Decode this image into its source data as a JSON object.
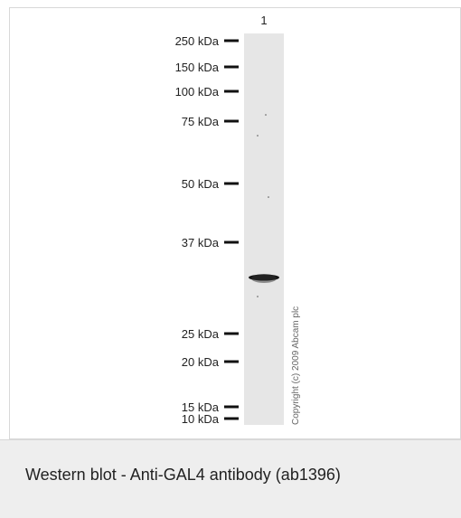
{
  "figure": {
    "lane_label": "1",
    "markers": [
      "250 kDa",
      "150 kDa",
      "100 kDa",
      "75 kDa",
      "50 kDa",
      "37 kDa",
      "25 kDa",
      "20 kDa",
      "15 kDa",
      "10 kDa"
    ],
    "copyright": "Copyright (c) 2009 Abcam plc"
  },
  "caption": "Western blot - Anti-GAL4 antibody (ab1396)"
}
